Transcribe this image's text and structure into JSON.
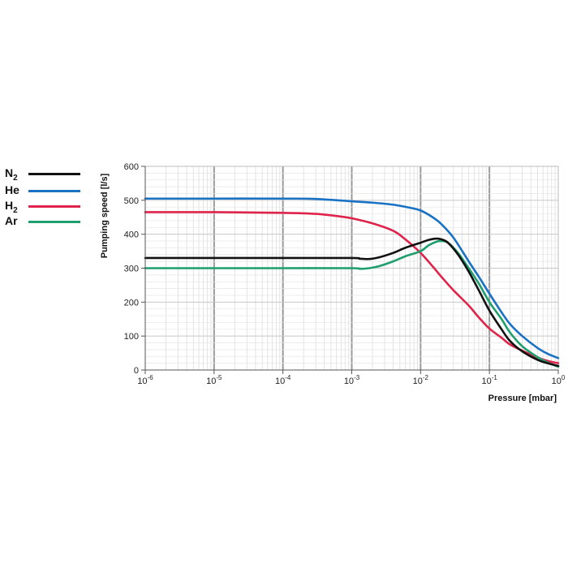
{
  "chart_data": {
    "type": "line",
    "xscale": "log",
    "xlim": [
      1e-06,
      1
    ],
    "ylim": [
      0,
      600
    ],
    "grid": true,
    "legend_position": "top-left",
    "xlabel": "Pressure [mbar]",
    "ylabel": "Pumping speed [l/s]",
    "x_tick_labels": [
      {
        "base": "10",
        "exp": "-6"
      },
      {
        "base": "10",
        "exp": "-5"
      },
      {
        "base": "10",
        "exp": "-4"
      },
      {
        "base": "10",
        "exp": "-3"
      },
      {
        "base": "10",
        "exp": "-2"
      },
      {
        "base": "10",
        "exp": "-1"
      },
      {
        "base": "10",
        "exp": "0"
      }
    ],
    "y_tick_labels": [
      "0",
      "100",
      "200",
      "300",
      "400",
      "500",
      "600"
    ],
    "series": [
      {
        "name": "N2",
        "name_main": "N",
        "name_sub": "2",
        "color": "#111111",
        "points": [
          [
            1e-06,
            330
          ],
          [
            1e-05,
            330
          ],
          [
            0.0001,
            330
          ],
          [
            0.001,
            330
          ],
          [
            0.0013,
            328
          ],
          [
            0.0018,
            327
          ],
          [
            0.0025,
            332
          ],
          [
            0.004,
            345
          ],
          [
            0.006,
            360
          ],
          [
            0.01,
            375
          ],
          [
            0.013,
            383
          ],
          [
            0.017,
            387
          ],
          [
            0.02,
            385
          ],
          [
            0.025,
            375
          ],
          [
            0.035,
            340
          ],
          [
            0.05,
            290
          ],
          [
            0.07,
            235
          ],
          [
            0.1,
            175
          ],
          [
            0.15,
            120
          ],
          [
            0.2,
            85
          ],
          [
            0.3,
            55
          ],
          [
            0.5,
            30
          ],
          [
            0.7,
            20
          ],
          [
            1,
            12
          ]
        ]
      },
      {
        "name": "He",
        "name_main": "He",
        "name_sub": "",
        "color": "#1a72c4",
        "points": [
          [
            1e-06,
            505
          ],
          [
            1e-05,
            505
          ],
          [
            0.0001,
            505
          ],
          [
            0.0003,
            504
          ],
          [
            0.001,
            497
          ],
          [
            0.002,
            493
          ],
          [
            0.004,
            487
          ],
          [
            0.007,
            478
          ],
          [
            0.01,
            470
          ],
          [
            0.015,
            450
          ],
          [
            0.02,
            430
          ],
          [
            0.03,
            390
          ],
          [
            0.05,
            320
          ],
          [
            0.07,
            275
          ],
          [
            0.1,
            225
          ],
          [
            0.15,
            170
          ],
          [
            0.2,
            135
          ],
          [
            0.3,
            100
          ],
          [
            0.5,
            65
          ],
          [
            0.7,
            48
          ],
          [
            1,
            35
          ]
        ]
      },
      {
        "name": "H2",
        "name_main": "H",
        "name_sub": "2",
        "color": "#e0234a",
        "points": [
          [
            1e-06,
            465
          ],
          [
            1e-05,
            465
          ],
          [
            0.0001,
            463
          ],
          [
            0.0003,
            460
          ],
          [
            0.0007,
            452
          ],
          [
            0.001,
            447
          ],
          [
            0.002,
            432
          ],
          [
            0.004,
            410
          ],
          [
            0.006,
            385
          ],
          [
            0.01,
            345
          ],
          [
            0.015,
            305
          ],
          [
            0.02,
            275
          ],
          [
            0.03,
            235
          ],
          [
            0.05,
            190
          ],
          [
            0.07,
            155
          ],
          [
            0.1,
            122
          ],
          [
            0.15,
            95
          ],
          [
            0.2,
            75
          ],
          [
            0.3,
            57
          ],
          [
            0.5,
            37
          ],
          [
            0.7,
            27
          ],
          [
            1,
            20
          ]
        ]
      },
      {
        "name": "Ar",
        "name_main": "Ar",
        "name_sub": "",
        "color": "#1f9e6e",
        "points": [
          [
            1e-06,
            300
          ],
          [
            1e-05,
            300
          ],
          [
            0.0001,
            300
          ],
          [
            0.001,
            300
          ],
          [
            0.0013,
            298
          ],
          [
            0.0018,
            300
          ],
          [
            0.0025,
            306
          ],
          [
            0.004,
            320
          ],
          [
            0.006,
            335
          ],
          [
            0.01,
            350
          ],
          [
            0.013,
            367
          ],
          [
            0.017,
            378
          ],
          [
            0.02,
            380
          ],
          [
            0.025,
            375
          ],
          [
            0.035,
            345
          ],
          [
            0.05,
            300
          ],
          [
            0.07,
            255
          ],
          [
            0.1,
            200
          ],
          [
            0.15,
            150
          ],
          [
            0.2,
            110
          ],
          [
            0.3,
            70
          ],
          [
            0.5,
            38
          ],
          [
            0.7,
            22
          ],
          [
            1,
            10
          ]
        ]
      }
    ]
  }
}
